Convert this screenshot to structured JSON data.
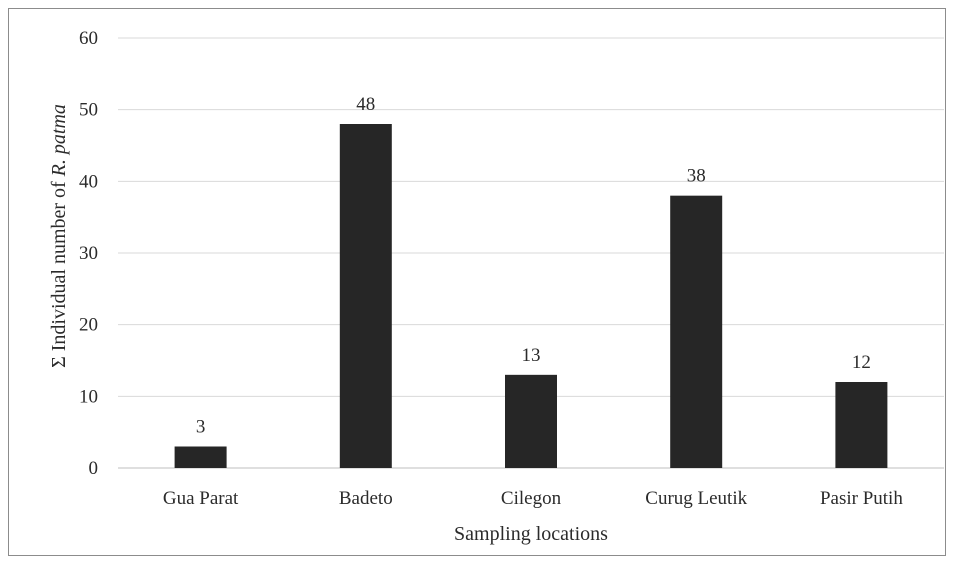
{
  "chart_data": {
    "type": "bar",
    "title": "",
    "xlabel": "Sampling locations",
    "ylabel": {
      "prefix": "Σ Individual number of ",
      "italic": "R. patma"
    },
    "categories": [
      "Gua Parat",
      "Badeto",
      "Cilegon",
      "Curug Leutik",
      "Pasir Putih"
    ],
    "values": [
      3,
      48,
      13,
      38,
      12
    ],
    "ylim": [
      0,
      60
    ],
    "yticks": [
      0,
      10,
      20,
      30,
      40,
      50,
      60
    ],
    "grid": true,
    "legend": "none",
    "bar_color": "#262626",
    "grid_color": "#d9d9d9"
  }
}
